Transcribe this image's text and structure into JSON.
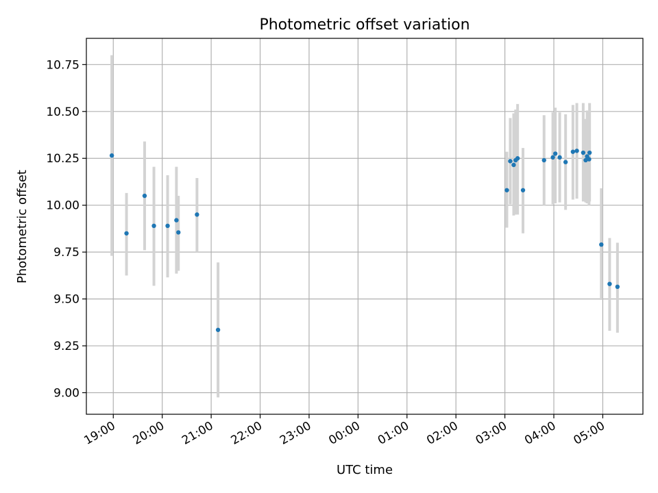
{
  "chart_data": {
    "type": "scatter",
    "title": "Photometric offset variation",
    "xlabel": "UTC time",
    "ylabel": "Photometric offset",
    "x_unit": "hours",
    "xlim": [
      18.45,
      29.82
    ],
    "ylim": [
      8.885,
      10.89
    ],
    "x_ticks": [
      {
        "value": 19,
        "label": "19:00"
      },
      {
        "value": 20,
        "label": "20:00"
      },
      {
        "value": 21,
        "label": "21:00"
      },
      {
        "value": 22,
        "label": "22:00"
      },
      {
        "value": 23,
        "label": "23:00"
      },
      {
        "value": 24,
        "label": "00:00"
      },
      {
        "value": 25,
        "label": "01:00"
      },
      {
        "value": 26,
        "label": "02:00"
      },
      {
        "value": 27,
        "label": "03:00"
      },
      {
        "value": 28,
        "label": "04:00"
      },
      {
        "value": 29,
        "label": "05:00"
      }
    ],
    "y_ticks": [
      {
        "value": 9.0,
        "label": "9.00"
      },
      {
        "value": 9.25,
        "label": "9.25"
      },
      {
        "value": 9.5,
        "label": "9.50"
      },
      {
        "value": 9.75,
        "label": "9.75"
      },
      {
        "value": 10.0,
        "label": "10.00"
      },
      {
        "value": 10.25,
        "label": "10.25"
      },
      {
        "value": 10.5,
        "label": "10.50"
      },
      {
        "value": 10.75,
        "label": "10.75"
      }
    ],
    "grid": true,
    "point_color": "#1f77b4",
    "errorbar_color": "#d3d3d3",
    "points": [
      {
        "x": 18.97,
        "y": 10.265,
        "lo": 9.73,
        "hi": 10.8
      },
      {
        "x": 19.27,
        "y": 9.85,
        "lo": 9.625,
        "hi": 10.065
      },
      {
        "x": 19.64,
        "y": 10.05,
        "lo": 9.76,
        "hi": 10.34
      },
      {
        "x": 19.83,
        "y": 9.89,
        "lo": 9.57,
        "hi": 10.205
      },
      {
        "x": 20.11,
        "y": 9.89,
        "lo": 9.615,
        "hi": 10.16
      },
      {
        "x": 20.29,
        "y": 9.92,
        "lo": 9.635,
        "hi": 10.205
      },
      {
        "x": 20.33,
        "y": 9.855,
        "lo": 9.65,
        "hi": 10.05
      },
      {
        "x": 20.71,
        "y": 9.95,
        "lo": 9.75,
        "hi": 10.145
      },
      {
        "x": 21.14,
        "y": 9.335,
        "lo": 8.975,
        "hi": 9.695
      },
      {
        "x": 27.04,
        "y": 10.08,
        "lo": 9.88,
        "hi": 10.285
      },
      {
        "x": 27.11,
        "y": 10.235,
        "lo": 10.005,
        "hi": 10.465
      },
      {
        "x": 27.18,
        "y": 10.215,
        "lo": 9.945,
        "hi": 10.49
      },
      {
        "x": 27.22,
        "y": 10.24,
        "lo": 9.95,
        "hi": 10.51
      },
      {
        "x": 27.26,
        "y": 10.25,
        "lo": 9.95,
        "hi": 10.54
      },
      {
        "x": 27.37,
        "y": 10.08,
        "lo": 9.85,
        "hi": 10.305
      },
      {
        "x": 27.8,
        "y": 10.24,
        "lo": 10.0,
        "hi": 10.48
      },
      {
        "x": 27.98,
        "y": 10.255,
        "lo": 10.005,
        "hi": 10.495
      },
      {
        "x": 28.03,
        "y": 10.275,
        "lo": 10.01,
        "hi": 10.52
      },
      {
        "x": 28.12,
        "y": 10.255,
        "lo": 10.015,
        "hi": 10.495
      },
      {
        "x": 28.24,
        "y": 10.23,
        "lo": 9.975,
        "hi": 10.485
      },
      {
        "x": 28.39,
        "y": 10.285,
        "lo": 10.03,
        "hi": 10.535
      },
      {
        "x": 28.47,
        "y": 10.29,
        "lo": 10.035,
        "hi": 10.545
      },
      {
        "x": 28.6,
        "y": 10.28,
        "lo": 10.02,
        "hi": 10.545
      },
      {
        "x": 28.65,
        "y": 10.24,
        "lo": 10.015,
        "hi": 10.46
      },
      {
        "x": 28.68,
        "y": 10.26,
        "lo": 10.01,
        "hi": 10.505
      },
      {
        "x": 28.73,
        "y": 10.28,
        "lo": 10.02,
        "hi": 10.545
      },
      {
        "x": 28.72,
        "y": 10.245,
        "lo": 10.0,
        "hi": 10.49
      },
      {
        "x": 28.97,
        "y": 9.79,
        "lo": 9.495,
        "hi": 10.09
      },
      {
        "x": 29.14,
        "y": 9.58,
        "lo": 9.33,
        "hi": 9.825
      },
      {
        "x": 29.3,
        "y": 9.565,
        "lo": 9.32,
        "hi": 9.8
      }
    ]
  }
}
